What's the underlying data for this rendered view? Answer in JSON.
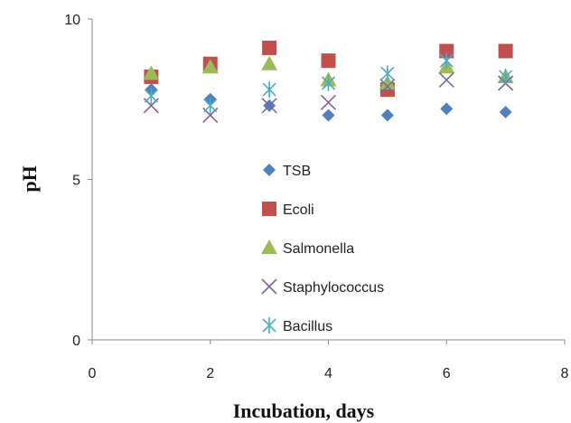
{
  "chart_data": {
    "type": "scatter",
    "title": "",
    "xlabel": "Incubation, days",
    "ylabel": "pH",
    "xlim": [
      0,
      8
    ],
    "ylim": [
      0,
      10
    ],
    "xticks": [
      "0",
      "2",
      "4",
      "6",
      "8"
    ],
    "yticks": [
      "0",
      "5",
      "10"
    ],
    "grid": false,
    "legend_position": "inside-center",
    "series": [
      {
        "name": "TSB",
        "marker": "diamond",
        "color": "#4f81bd",
        "x": [
          1,
          2,
          3,
          4,
          5,
          6,
          7
        ],
        "y": [
          7.8,
          7.5,
          7.3,
          7.0,
          7.0,
          7.2,
          7.1
        ]
      },
      {
        "name": "Ecoli",
        "marker": "square",
        "color": "#c0504d",
        "x": [
          1,
          2,
          3,
          4,
          5,
          6,
          7
        ],
        "y": [
          8.2,
          8.6,
          9.1,
          8.7,
          7.8,
          9.0,
          9.0
        ]
      },
      {
        "name": "Salmonella",
        "marker": "triangle",
        "color": "#9bbb59",
        "x": [
          1,
          2,
          3,
          4,
          5,
          6,
          7
        ],
        "y": [
          8.3,
          8.5,
          8.6,
          8.1,
          8.0,
          8.5,
          8.2
        ]
      },
      {
        "name": "Staphylococcus",
        "marker": "x",
        "color": "#8064a2",
        "x": [
          1,
          2,
          3,
          4,
          5,
          6,
          7
        ],
        "y": [
          7.3,
          7.0,
          7.3,
          7.4,
          7.9,
          8.1,
          8.0
        ]
      },
      {
        "name": "Bacillus",
        "marker": "star",
        "color": "#4bacc6",
        "x": [
          1,
          2,
          3,
          4,
          5,
          6,
          7
        ],
        "y": [
          7.6,
          7.3,
          7.8,
          8.0,
          8.3,
          8.7,
          8.2
        ]
      }
    ]
  }
}
